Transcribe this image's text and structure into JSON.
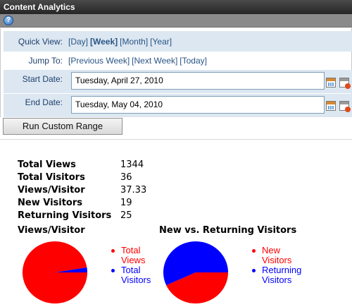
{
  "window": {
    "title": "Content Analytics"
  },
  "toolbar": {
    "help_icon": "help-icon",
    "help_glyph": "?"
  },
  "quick_view": {
    "label": "Quick View:",
    "options": [
      {
        "text": "[Day]",
        "selected": false
      },
      {
        "text": "[Week]",
        "selected": true
      },
      {
        "text": "[Month]",
        "selected": false
      },
      {
        "text": "[Year]",
        "selected": false
      }
    ]
  },
  "jump_to": {
    "label": "Jump To:",
    "links": [
      "[Previous Week]",
      "[Next Week]",
      "[Today]"
    ]
  },
  "start_date": {
    "label": "Start Date:",
    "value": "Tuesday, April 27, 2010"
  },
  "end_date": {
    "label": "End Date:",
    "value": "Tuesday, May 04, 2010"
  },
  "run_button": {
    "label": "Run Custom Range"
  },
  "stats": [
    {
      "label": "Total Views",
      "value": "1344"
    },
    {
      "label": "Total Visitors",
      "value": "36"
    },
    {
      "label": "Views/Visitor",
      "value": "37.33"
    },
    {
      "label": "New Visitors",
      "value": "19"
    },
    {
      "label": "Returning Visitors",
      "value": "25"
    }
  ],
  "colors": {
    "red": "#ff0000",
    "blue": "#0000ff",
    "label_blue": "#1f3f6e",
    "row_shade": "#dce7f1"
  },
  "chart_data": [
    {
      "type": "pie",
      "title": "Views/Visitor",
      "categories": [
        "Total Views",
        "Total Visitors"
      ],
      "values": [
        1344,
        36
      ],
      "colors": [
        "#ff0000",
        "#0000ff"
      ],
      "legend_lines": [
        [
          "Total",
          "Views"
        ],
        [
          "Total",
          "Visitors"
        ]
      ],
      "legend_position": "right"
    },
    {
      "type": "pie",
      "title": "New vs. Returning Visitors",
      "categories": [
        "New Visitors",
        "Returning Visitors"
      ],
      "values": [
        19,
        25
      ],
      "colors": [
        "#ff0000",
        "#0000ff"
      ],
      "legend_lines": [
        [
          "New",
          "Visitors"
        ],
        [
          "Returning",
          "Visitors"
        ]
      ],
      "legend_position": "right"
    }
  ]
}
